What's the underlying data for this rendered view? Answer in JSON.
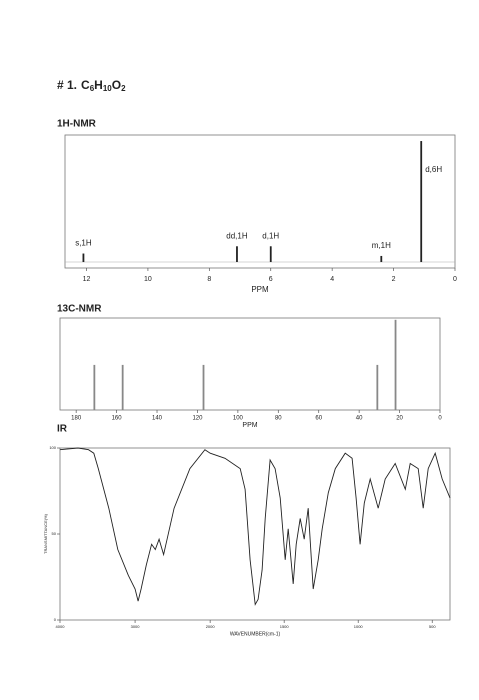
{
  "header": {
    "number": "# 1.",
    "formula": [
      {
        "text": "C",
        "sub": false
      },
      {
        "text": "6",
        "sub": true
      },
      {
        "text": "H",
        "sub": false
      },
      {
        "text": "10",
        "sub": true
      },
      {
        "text": "O",
        "sub": false
      },
      {
        "text": "2",
        "sub": true
      }
    ]
  },
  "chart_data": [
    {
      "type": "nmr",
      "title": "1H-NMR",
      "x_label": "PPM",
      "xlim": [
        12.7,
        0
      ],
      "xticks": [
        12,
        10,
        8,
        6,
        4,
        2,
        0
      ],
      "ylim": [
        0,
        105
      ],
      "color": "#222222",
      "x": [
        12.1,
        7.1,
        6.0,
        2.4,
        1.1
      ],
      "values": [
        7,
        13,
        13,
        5,
        100
      ],
      "annotations": [
        "s,1H",
        "dd,1H",
        "d,1H",
        "m,1H",
        "d,6H"
      ]
    },
    {
      "type": "nmr",
      "title": "13C-NMR",
      "x_label": "PPM",
      "xlim": [
        188,
        0
      ],
      "xticks": [
        180,
        160,
        140,
        120,
        100,
        80,
        60,
        40,
        20,
        0
      ],
      "ylim": [
        0,
        102
      ],
      "color": "#888888",
      "x": [
        171,
        157,
        117,
        31,
        22
      ],
      "values": [
        50,
        50,
        50,
        50,
        100
      ]
    },
    {
      "type": "line",
      "title": "IR",
      "x_label": "WAVENUMBER(cm-1)",
      "y_label": "TRANSMITTANCE(%)",
      "xlim": [
        4000,
        380
      ],
      "x_scale_break": 2000,
      "xticks": [
        4000,
        3000,
        2000,
        1500,
        1000,
        500
      ],
      "ylim": [
        0,
        100
      ],
      "yticks": [
        0,
        50,
        100
      ],
      "color": "#222222",
      "x": [
        4000,
        3760,
        3620,
        3550,
        3490,
        3350,
        3230,
        3090,
        3000,
        2960,
        2920,
        2850,
        2780,
        2730,
        2680,
        2620,
        2480,
        2270,
        2070,
        2000,
        1900,
        1797,
        1764,
        1730,
        1696,
        1676,
        1649,
        1628,
        1595,
        1561,
        1527,
        1493,
        1473,
        1439,
        1419,
        1392,
        1365,
        1338,
        1304,
        1270,
        1243,
        1202,
        1155,
        1088,
        1041,
        1014,
        987,
        959,
        919,
        865,
        818,
        750,
        682,
        649,
        595,
        561,
        527,
        480,
        433,
        380
      ],
      "values": [
        99,
        100,
        99,
        97,
        88,
        65,
        41,
        26,
        18,
        11,
        18,
        32,
        44,
        41,
        47,
        38,
        65,
        88,
        99,
        97,
        94,
        88,
        76,
        35,
        9,
        12,
        29,
        59,
        93,
        88,
        71,
        35,
        53,
        21,
        44,
        59,
        47,
        65,
        18,
        35,
        53,
        74,
        88,
        97,
        94,
        71,
        44,
        68,
        82,
        65,
        82,
        91,
        76,
        91,
        88,
        65,
        88,
        97,
        82,
        71
      ]
    }
  ]
}
